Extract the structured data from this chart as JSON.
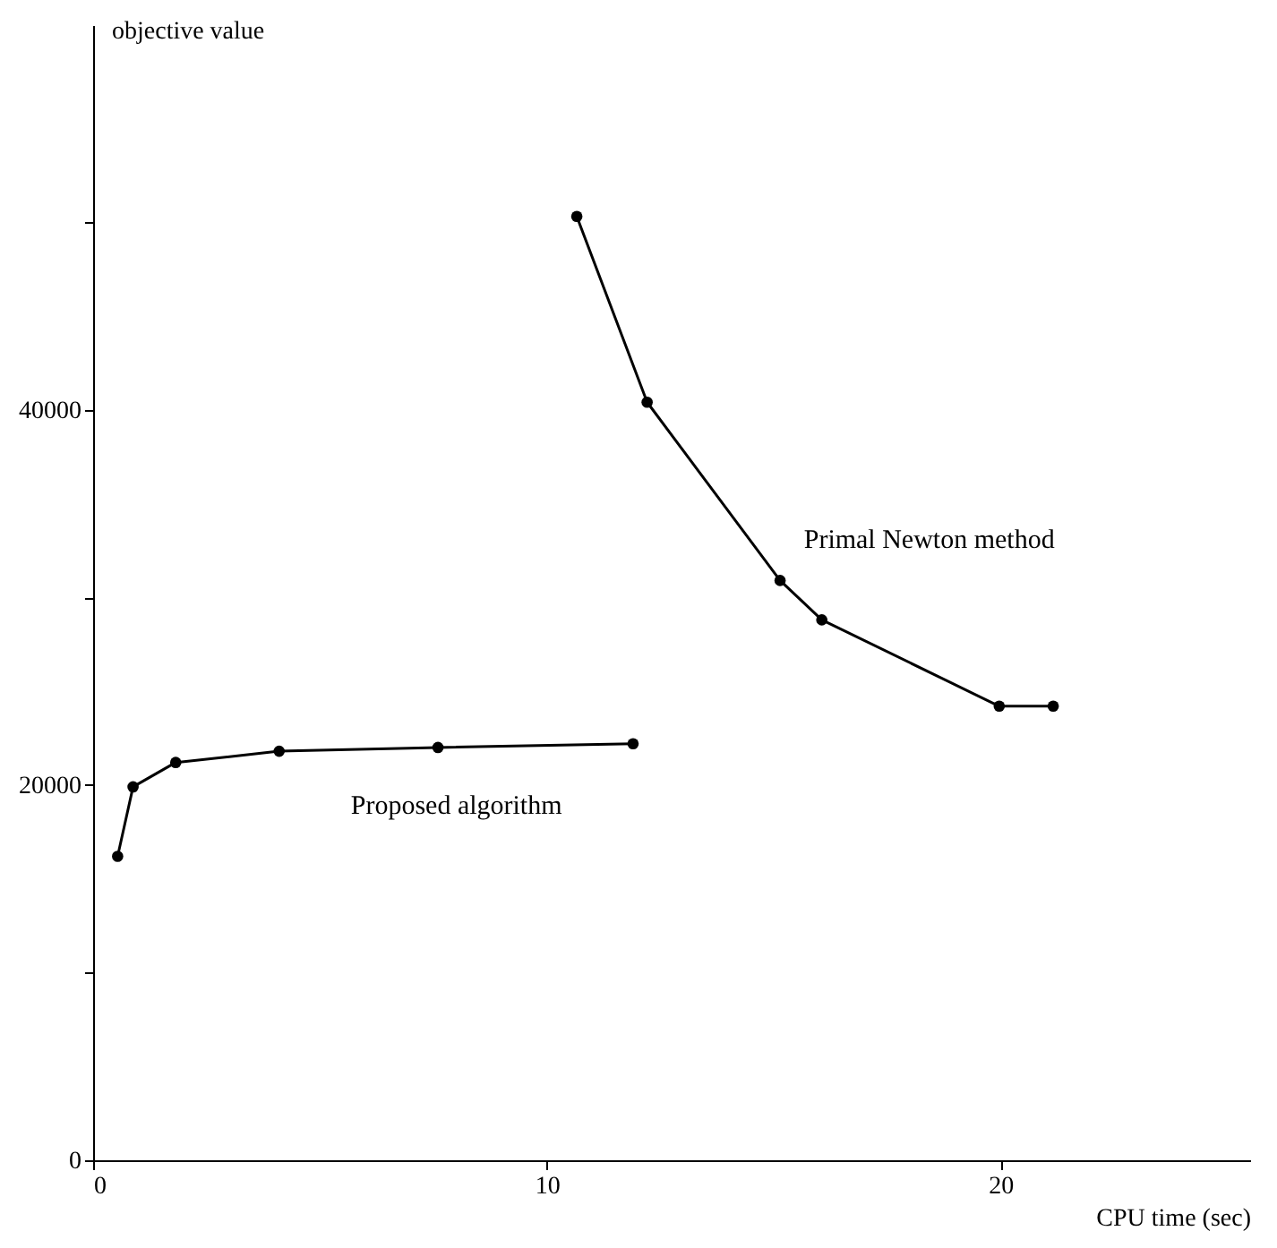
{
  "chart_data": {
    "type": "line",
    "xlabel": "CPU time (sec)",
    "ylabel": "objective value",
    "xlim": [
      0,
      25.5
    ],
    "ylim": [
      0,
      60500
    ],
    "xticks": [
      0,
      10,
      20
    ],
    "yticks": [
      0,
      {
        "value": 10000,
        "label": null
      },
      20000,
      {
        "value": 30000,
        "label": null
      },
      40000,
      {
        "value": 50000,
        "label": null
      }
    ],
    "grid": false,
    "legend": false,
    "marker": "circle",
    "line_style": "solid",
    "series": [
      {
        "name": "Proposed algorithm",
        "color": "#000000",
        "x": [
          0.54,
          0.88,
          1.82,
          4.1,
          7.6,
          11.9
        ],
        "values": [
          16200,
          19900,
          21200,
          21800,
          22000,
          22200
        ]
      },
      {
        "name": "Primal Newton method",
        "color": "#000000",
        "x": [
          10.66,
          12.21,
          15.14,
          16.06,
          19.97,
          21.16
        ],
        "values": [
          50300,
          40400,
          30900,
          28800,
          24200,
          24200
        ]
      }
    ]
  }
}
